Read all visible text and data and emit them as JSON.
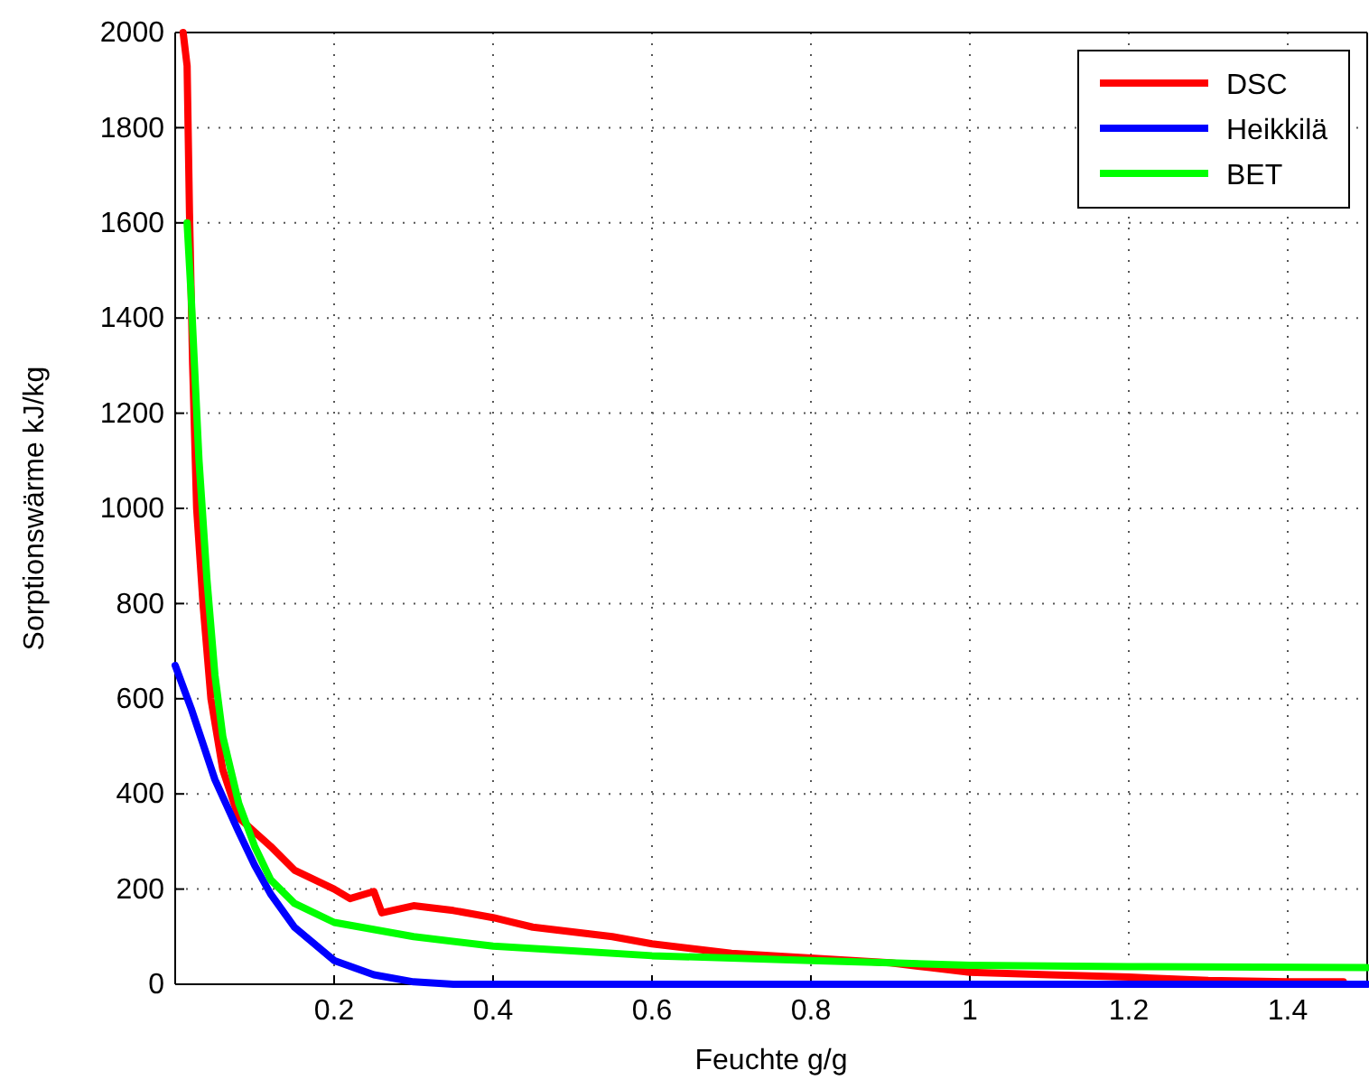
{
  "chart_data": {
    "type": "line",
    "xlabel": "Feuchte g/g",
    "ylabel": "Sorptionswärme kJ/kg",
    "xlim": [
      0,
      1.5
    ],
    "ylim": [
      0,
      2000
    ],
    "xticks": [
      0.2,
      0.4,
      0.6,
      0.8,
      1,
      1.2,
      1.4
    ],
    "yticks": [
      0,
      200,
      400,
      600,
      800,
      1000,
      1200,
      1400,
      1600,
      1800,
      2000
    ],
    "grid": true,
    "legend": "top right",
    "line_style": "solid",
    "marker": "none",
    "series": [
      {
        "name": "DSC",
        "color": "#ff0000",
        "x": [
          0.01,
          0.015,
          0.018,
          0.022,
          0.027,
          0.035,
          0.045,
          0.06,
          0.08,
          0.1,
          0.12,
          0.15,
          0.2,
          0.22,
          0.25,
          0.26,
          0.3,
          0.35,
          0.4,
          0.45,
          0.5,
          0.55,
          0.6,
          0.7,
          0.8,
          0.9,
          0.95,
          1.0,
          1.1,
          1.2,
          1.3,
          1.4,
          1.47
        ],
        "values": [
          2000,
          1930,
          1620,
          1300,
          1000,
          800,
          600,
          450,
          350,
          320,
          290,
          240,
          200,
          180,
          195,
          150,
          165,
          155,
          140,
          120,
          110,
          100,
          85,
          65,
          55,
          45,
          35,
          25,
          20,
          15,
          8,
          5,
          5
        ]
      },
      {
        "name": "Heikkilä",
        "color": "#0000ff",
        "x": [
          0,
          0.02,
          0.05,
          0.08,
          0.1,
          0.12,
          0.15,
          0.2,
          0.25,
          0.3,
          0.35,
          1.5
        ],
        "values": [
          670,
          580,
          430,
          320,
          250,
          190,
          120,
          50,
          20,
          5,
          0,
          0
        ]
      },
      {
        "name": "BET",
        "color": "#00ff00",
        "x": [
          0.015,
          0.02,
          0.03,
          0.04,
          0.05,
          0.06,
          0.08,
          0.1,
          0.12,
          0.15,
          0.2,
          0.3,
          0.4,
          0.5,
          0.6,
          0.7,
          0.8,
          0.9,
          1.0,
          1.2,
          1.5
        ],
        "values": [
          1600,
          1450,
          1100,
          850,
          650,
          520,
          380,
          290,
          220,
          170,
          130,
          100,
          80,
          70,
          60,
          55,
          50,
          45,
          40,
          37,
          35
        ]
      }
    ]
  }
}
